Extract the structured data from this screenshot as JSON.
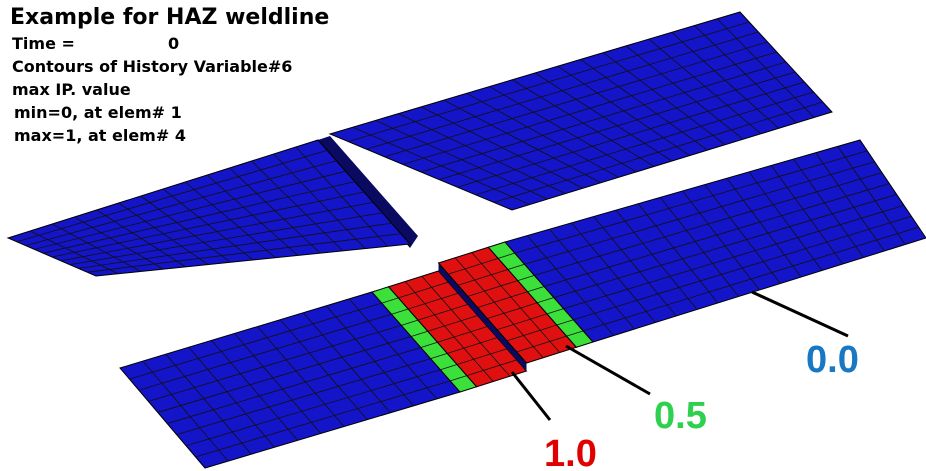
{
  "header": {
    "title": "Example for HAZ weldline",
    "time_label": "Time =",
    "time_value": "0",
    "lines": [
      "Contours of History Variable#6",
      "max IP. value",
      "min=0, at elem# 1",
      "max=1, at elem# 4"
    ]
  },
  "callouts": [
    {
      "label": "0.0",
      "color": "#1a78c2"
    },
    {
      "label": "0.5",
      "color": "#2fd04f"
    },
    {
      "label": "1.0",
      "color": "#e00000"
    }
  ]
}
